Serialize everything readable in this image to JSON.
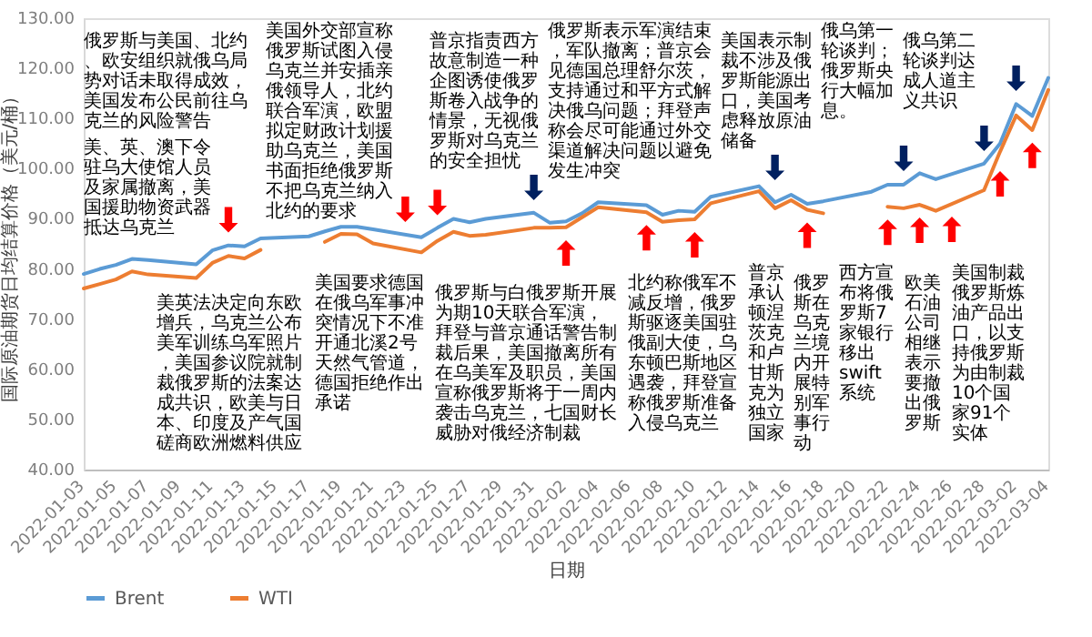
{
  "chart_data": {
    "type": "line",
    "xlabel": "日期",
    "ylabel": "国际原油期货日均结算价格（美元/桶）",
    "x": [
      "2022-01-03",
      "2022-01-04",
      "2022-01-05",
      "2022-01-06",
      "2022-01-07",
      "2022-01-10",
      "2022-01-11",
      "2022-01-12",
      "2022-01-13",
      "2022-01-14",
      "2022-01-17",
      "2022-01-18",
      "2022-01-19",
      "2022-01-20",
      "2022-01-21",
      "2022-01-24",
      "2022-01-25",
      "2022-01-26",
      "2022-01-27",
      "2022-01-28",
      "2022-01-31",
      "2022-02-01",
      "2022-02-02",
      "2022-02-03",
      "2022-02-04",
      "2022-02-07",
      "2022-02-08",
      "2022-02-09",
      "2022-02-10",
      "2022-02-11",
      "2022-02-14",
      "2022-02-15",
      "2022-02-16",
      "2022-02-17",
      "2022-02-18",
      "2022-02-21",
      "2022-02-22",
      "2022-02-23",
      "2022-02-24",
      "2022-02-25",
      "2022-02-28",
      "2022-03-01",
      "2022-03-02",
      "2022-03-03",
      "2022-03-04"
    ],
    "series": [
      {
        "name": "Brent",
        "color": "#5b9bd5",
        "values": [
          79.0,
          80.0,
          80.8,
          82.0,
          81.8,
          80.9,
          83.7,
          84.7,
          84.5,
          86.1,
          86.5,
          87.5,
          88.4,
          88.4,
          87.9,
          86.3,
          88.2,
          90.0,
          89.3,
          90.0,
          91.2,
          89.2,
          89.5,
          91.1,
          93.3,
          92.7,
          90.8,
          91.6,
          91.4,
          94.4,
          96.5,
          93.3,
          94.8,
          93.0,
          93.5,
          95.4,
          96.8,
          96.8,
          99.1,
          97.9,
          101.0,
          105.0,
          112.9,
          110.5,
          118.1
        ]
      },
      {
        "name": "WTI",
        "color": "#ed7d31",
        "values": [
          76.1,
          77.0,
          77.9,
          79.5,
          78.9,
          78.2,
          81.2,
          82.6,
          82.1,
          83.8,
          null,
          85.4,
          87.0,
          86.9,
          85.1,
          83.3,
          85.6,
          87.4,
          86.6,
          86.8,
          88.2,
          88.2,
          88.3,
          90.3,
          92.3,
          91.3,
          89.4,
          89.7,
          89.9,
          93.1,
          95.5,
          92.1,
          93.7,
          91.8,
          91.1,
          null,
          92.4,
          92.1,
          92.8,
          91.6,
          95.7,
          103.4,
          110.6,
          107.7,
          115.7
        ]
      }
    ],
    "xlim": [
      "2022-01-03",
      "2022-03-04"
    ],
    "xticks": [
      "2022-01-03",
      "2022-01-05",
      "2022-01-07",
      "2022-01-09",
      "2022-01-11",
      "2022-01-13",
      "2022-01-15",
      "2022-01-17",
      "2022-01-19",
      "2022-01-21",
      "2022-01-23",
      "2022-01-25",
      "2022-01-27",
      "2022-01-29",
      "2022-01-31",
      "2022-02-02",
      "2022-02-04",
      "2022-02-06",
      "2022-02-08",
      "2022-02-10",
      "2022-02-12",
      "2022-02-14",
      "2022-02-16",
      "2022-02-18",
      "2022-02-20",
      "2022-02-22",
      "2022-02-24",
      "2022-02-26",
      "2022-02-28",
      "2022-03-02",
      "2022-03-04"
    ],
    "ylim": [
      40,
      130
    ],
    "yticks": [
      {
        "value": 40,
        "label": "40.00"
      },
      {
        "value": 50,
        "label": "50.00"
      },
      {
        "value": 60,
        "label": "60.00"
      },
      {
        "value": 70,
        "label": "70.00"
      },
      {
        "value": 80,
        "label": "80.00"
      },
      {
        "value": 90,
        "label": "90.00"
      },
      {
        "value": 100,
        "label": "100.00"
      },
      {
        "value": 110,
        "label": "110.00"
      },
      {
        "value": 120,
        "label": "120.00"
      },
      {
        "value": 130,
        "label": "130.00"
      }
    ],
    "grid": false,
    "legend": "bottom",
    "marker": "none",
    "line_style": "solid",
    "annotations": [
      "俄罗斯与美国、北约、欧安组织就俄乌局势对话未取得成效，美国发布公民前往乌克兰的风险警告",
      "美、英、澳下令驻乌大使馆人员及家属撤离，美国援助物资武器抵达乌克兰",
      "美国外交部宣称俄罗斯试图入侵乌克兰并安插亲俄领导人，北约联合军演，欧盟拟定财政计划援助乌克兰，美国书面拒绝俄罗斯不把乌克兰纳入北约的要求",
      "普京指责西方故意制造一种企图诱使俄罗斯卷入战争的情景，无视俄罗斯对乌克兰的安全担忧",
      "美英法决定向东欧增兵，乌克兰公布美军训练乌军照片，美国参议院就制裁俄罗斯的法案达成共识，欧美与日本、印度及产气国磋商欧洲燃料供应",
      "美国要求德国在俄乌军事冲突情况下不准开通北溪2号天然气管道，德国拒绝作出承诺",
      "俄罗斯与白俄罗斯开展为期10天联合军演，拜登与普京通话警告制裁后果，美国撤离所有在乌美军及职员，美国宣称俄罗斯将于一周内袭击乌克兰，七国财长威胁对俄经济制裁",
      "俄罗斯表示军演结束，军队撤离；普京会见德国总理舒尔茨，支持通过和平方式解决俄乌问题；拜登声称会尽可能通过外交渠道解决问题以避免发生冲突",
      "北约称俄军不减反增，俄罗斯驱逐美国驻俄副大使，乌东顿巴斯地区遇袭，拜登宣称俄罗斯准备入侵乌克兰",
      "普京承认顿涅茨克和卢甘斯克为独立国家",
      "美国表示制裁不涉及俄罗斯能源出口，美国考虑释放原油储备",
      "俄罗斯在乌克兰境内开展特别军事行动",
      "西方宣布将俄罗斯7家银行移出swift系统",
      "俄乌第一轮谈判；俄罗斯央行大幅加息。",
      "欧美石油公司相继表示要撤出俄罗斯",
      "俄乌第二轮谈判达成人道主义共识",
      "美国制裁俄罗斯炼油产品出口，以支持俄罗斯为由制裁10个国家91个实体"
    ]
  }
}
